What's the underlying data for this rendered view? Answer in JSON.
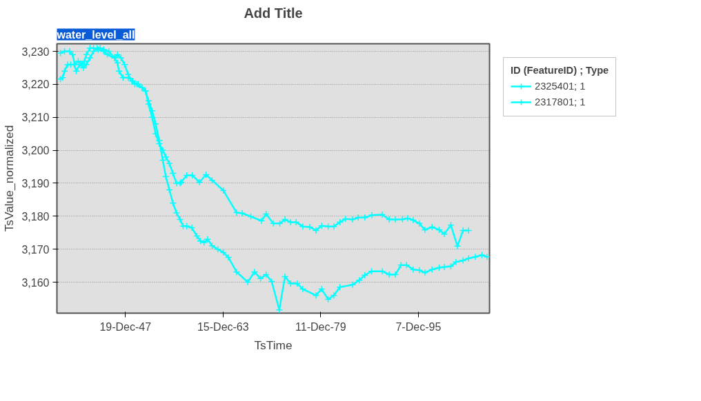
{
  "chart_data": {
    "type": "line",
    "title": "Add Title",
    "xlabel": "TsTime",
    "ylabel": "TsValue_normalized",
    "legend_title": "ID (FeatureID) ; Type",
    "annotations": [
      "water_level_all"
    ],
    "xlim": [
      "1936-10",
      "2007-08"
    ],
    "xticks": [
      {
        "value": "1947-12-19",
        "label": "19-Dec-47"
      },
      {
        "value": "1963-12-15",
        "label": "15-Dec-63"
      },
      {
        "value": "1979-12-11",
        "label": "11-Dec-79"
      },
      {
        "value": "1995-12-07",
        "label": "7-Dec-95"
      }
    ],
    "ylim": [
      3150.6,
      3232.3
    ],
    "yticks": [
      {
        "value": 3160,
        "label": "3,160"
      },
      {
        "value": 3170,
        "label": "3,170"
      },
      {
        "value": 3180,
        "label": "3,180"
      },
      {
        "value": 3190,
        "label": "3,190"
      },
      {
        "value": 3200,
        "label": "3,200"
      },
      {
        "value": 3210,
        "label": "3,210"
      },
      {
        "value": 3220,
        "label": "3,220"
      },
      {
        "value": 3230,
        "label": "3,230"
      }
    ],
    "grid": "y",
    "legend": "top right",
    "marker": "cross",
    "line_style": "solid",
    "series": [
      {
        "name": "2325401; 1",
        "color": "#00ffff",
        "x": [
          "1937-05",
          "1938-01",
          "1938-11",
          "1939-05",
          "1939-09",
          "1940-04",
          "1940-11",
          "1941-04",
          "1941-08",
          "1942-03",
          "1942-10",
          "1943-07",
          "1944-06",
          "1945-01",
          "1946-03",
          "1946-09",
          "1946-12",
          "1947-08",
          "1948-06",
          "1949-03",
          "1949-11",
          "1950-09",
          "1951-04",
          "1951-10",
          "1952-05",
          "1952-12",
          "1953-07",
          "1954-02",
          "1954-08",
          "1955-03",
          "1955-10",
          "1956-05",
          "1956-12",
          "1957-02",
          "1958-01",
          "1958-12",
          "1960-02",
          "1961-03",
          "1962-03",
          "1964-01",
          "1966-03",
          "1967-02",
          "1968-07",
          "1970-04",
          "1971-01",
          "1972-03",
          "1973-04",
          "1974-02",
          "1975-01",
          "1975-12",
          "1977-01",
          "1978-03",
          "1979-03",
          "1980-02",
          "1981-03",
          "1982-02",
          "1983-02",
          "1984-01",
          "1985-03",
          "1986-02",
          "1987-03",
          "1988-05",
          "1990-01",
          "1991-03",
          "1992-03",
          "1993-05",
          "1994-03",
          "1995-02",
          "1996-02",
          "1997-01",
          "1998-03",
          "1999-05",
          "2000-03",
          "2001-04",
          "2002-05",
          "2003-04",
          "2004-03"
        ],
        "values": [
          3229.5,
          3230,
          3230,
          3229,
          3226,
          3227,
          3226,
          3227,
          3229,
          3231,
          3231,
          3230.5,
          3230,
          3229,
          3228,
          3226.5,
          3224,
          3222,
          3222,
          3221,
          3220,
          3219,
          3218,
          3214,
          3210,
          3205,
          3202,
          3200,
          3198,
          3196,
          3193,
          3190,
          3190,
          3190.3,
          3192.4,
          3192.4,
          3190.3,
          3192.6,
          3190.9,
          3187.8,
          3181.1,
          3180.9,
          3179.9,
          3178.6,
          3180.7,
          3177.8,
          3177.8,
          3179,
          3178.2,
          3178.2,
          3176.9,
          3176.7,
          3175.7,
          3177.1,
          3176.9,
          3176.9,
          3178.2,
          3179.2,
          3179,
          3179.6,
          3179.6,
          3180.3,
          3180.5,
          3179,
          3179,
          3179,
          3179.4,
          3178.8,
          3177.8,
          3175.9,
          3176.7,
          3175.9,
          3174.6,
          3177.3,
          3170.9,
          3175.7,
          3175.7
        ]
      },
      {
        "name": "2317801; 1",
        "color": "#00ffff",
        "x": [
          "1937-05",
          "1937-09",
          "1938-01",
          "1938-07",
          "1939-01",
          "1939-08",
          "1939-12",
          "1940-07",
          "1941-02",
          "1941-08",
          "1942-03",
          "1942-10",
          "1943-05",
          "1943-11",
          "1944-06",
          "1945-04",
          "1946-03",
          "1946-09",
          "1947-04",
          "1947-11",
          "1948-06",
          "1949-01",
          "1949-07",
          "1950-02",
          "1950-09",
          "1951-04",
          "1951-10",
          "1952-05",
          "1952-12",
          "1953-07",
          "1954-02",
          "1954-08",
          "1955-03",
          "1955-10",
          "1956-05",
          "1956-12",
          "1957-06",
          "1958-01",
          "1958-11",
          "1959-09",
          "1960-04",
          "1960-11",
          "1961-06",
          "1962-03",
          "1963-02",
          "1964-01",
          "1964-11",
          "1966-03",
          "1968-01",
          "1969-02",
          "1970-02",
          "1971-01",
          "1971-12",
          "1973-03",
          "1974-02",
          "1975-01",
          "1976-02",
          "1977-01",
          "1979-03",
          "1980-02",
          "1981-03",
          "1982-02",
          "1983-02",
          "1985-03",
          "1986-04",
          "1987-03",
          "1988-04",
          "1990-01",
          "1991-03",
          "1992-03",
          "1993-02",
          "1994-01",
          "1995-02",
          "1996-02",
          "1997-01",
          "1998-03",
          "1999-05",
          "2000-03",
          "2001-04",
          "2002-02",
          "2003-04",
          "2004-03",
          "2005-04",
          "2006-05",
          "2007-03"
        ],
        "values": [
          3221.6,
          3222,
          3224,
          3226,
          3226,
          3226,
          3224,
          3226,
          3225,
          3226,
          3228,
          3230,
          3231,
          3231,
          3230.5,
          3230,
          3228,
          3229,
          3228,
          3226,
          3223,
          3221,
          3220,
          3220,
          3219,
          3218,
          3215,
          3212,
          3208,
          3203,
          3197,
          3192,
          3188,
          3184,
          3181,
          3179,
          3177,
          3177,
          3176.5,
          3174,
          3172.5,
          3172,
          3173,
          3171,
          3170,
          3169,
          3167.5,
          3163.1,
          3160,
          3163.1,
          3161.1,
          3162.3,
          3160.2,
          3151.6,
          3161.7,
          3159.6,
          3159.6,
          3157.9,
          3156,
          3157.9,
          3154.8,
          3156,
          3158.5,
          3159.2,
          3160.6,
          3162.1,
          3163.3,
          3163.3,
          3162.3,
          3162.3,
          3165.2,
          3165.2,
          3163.8,
          3163.6,
          3162.9,
          3163.8,
          3164.4,
          3164.6,
          3164.8,
          3166.1,
          3166.6,
          3167.2,
          3167.7,
          3168.2,
          3167.7
        ]
      }
    ]
  }
}
